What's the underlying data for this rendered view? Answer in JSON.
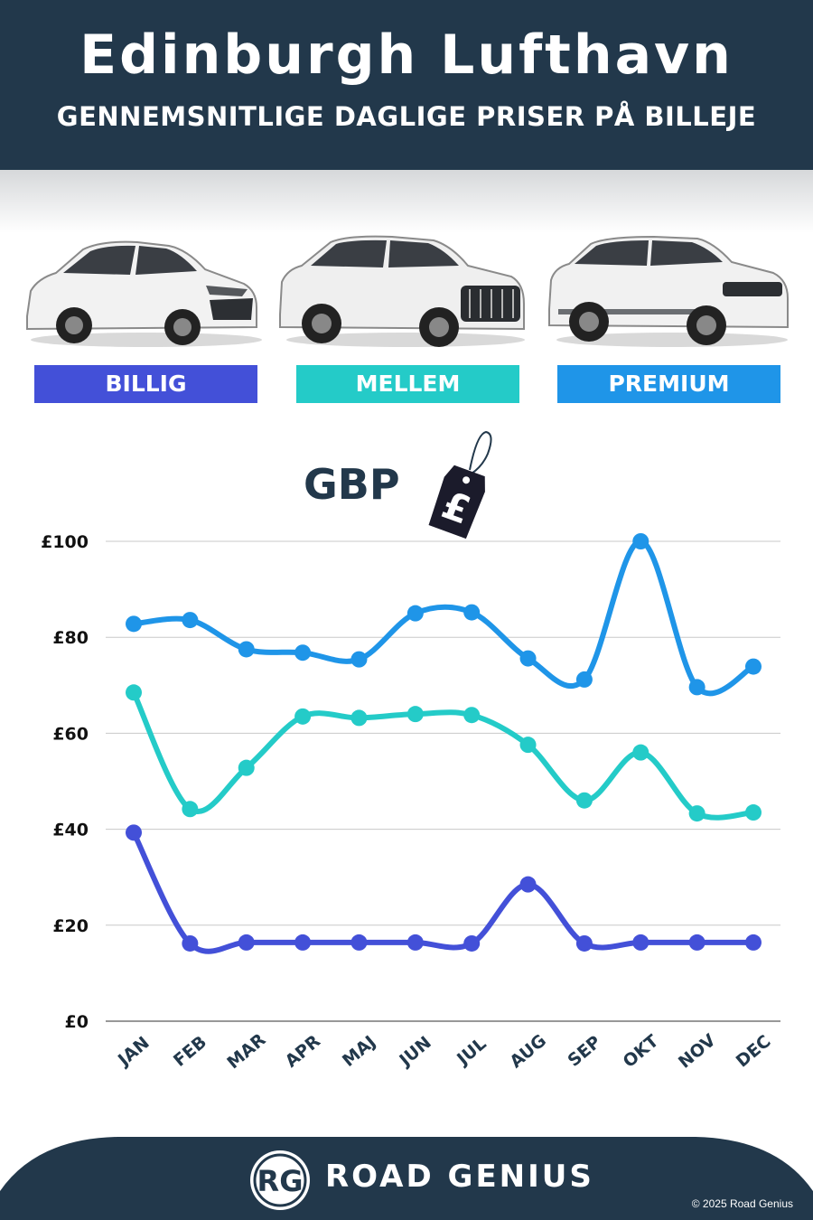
{
  "header": {
    "title": "Edinburgh Lufthavn",
    "subtitle": "GENNEMSNITLIGE DAGLIGE PRISER PÅ BILLEJE"
  },
  "categories": [
    {
      "label": "BILLIG",
      "color": "#4350d8"
    },
    {
      "label": "MELLEM",
      "color": "#24cbc8"
    },
    {
      "label": "PREMIUM",
      "color": "#1f95e8"
    }
  ],
  "currency_label": "GBP",
  "tag_symbol": "£",
  "chart_data": {
    "type": "line",
    "x": [
      "JAN",
      "FEB",
      "MAR",
      "APR",
      "MAJ",
      "JUN",
      "JUL",
      "AUG",
      "SEP",
      "OKT",
      "NOV",
      "DEC"
    ],
    "ylim": [
      0,
      100
    ],
    "yticks": [
      0,
      20,
      40,
      60,
      80,
      100
    ],
    "ytick_labels": [
      "£0",
      "£20",
      "£40",
      "£60",
      "£80",
      "£100"
    ],
    "grid": true,
    "series": [
      {
        "name": "PREMIUM",
        "color": "#1f95e8",
        "values": [
          82.8,
          83.6,
          77.5,
          76.8,
          75.4,
          85,
          85.2,
          75.6,
          71.2,
          100,
          69.6,
          73.9
        ]
      },
      {
        "name": "MELLEM",
        "color": "#24cbc8",
        "values": [
          68.5,
          44.2,
          52.8,
          63.5,
          63.2,
          64,
          63.8,
          57.6,
          46,
          56,
          43.3,
          43.5
        ]
      },
      {
        "name": "BILLIG",
        "color": "#4350d8",
        "values": [
          39.3,
          16.2,
          16.4,
          16.4,
          16.4,
          16.4,
          16.2,
          28.5,
          16.2,
          16.4,
          16.4,
          16.4
        ]
      }
    ]
  },
  "footer": {
    "logo_initials": "RG",
    "brand": "ROAD GENIUS",
    "copyright": "© 2025 Road Genius"
  }
}
